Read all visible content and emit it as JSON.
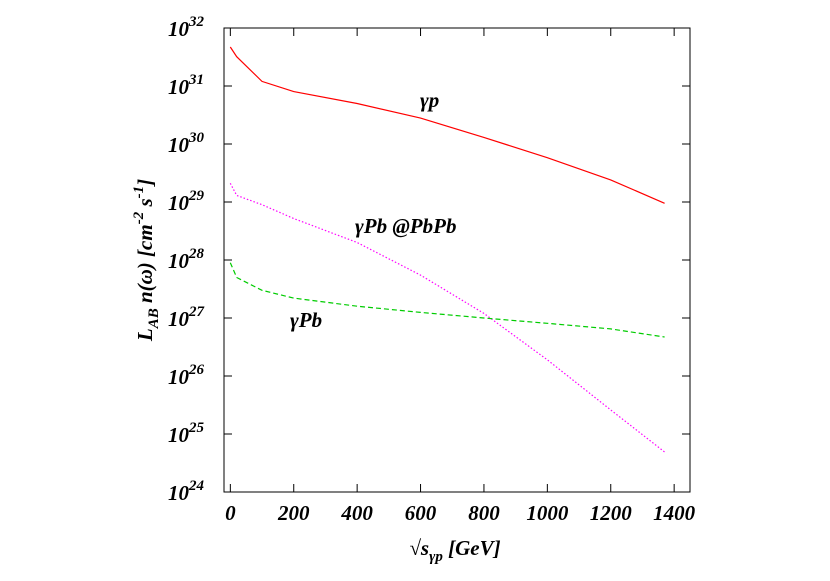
{
  "chart_data": {
    "type": "line",
    "x_label": [
      "√s",
      "γp",
      " [GeV]"
    ],
    "y_label": [
      "L",
      "AB",
      " n(ω) [cm",
      "-2",
      " s",
      "-1",
      "]"
    ],
    "x": [
      0,
      20,
      100,
      200,
      400,
      600,
      800,
      1000,
      1200,
      1370
    ],
    "series": [
      {
        "name": "γp",
        "color": "#ff0000",
        "style": "solid",
        "values": [
          4.7e+31,
          3.2e+31,
          1.2e+31,
          8e+30,
          5e+30,
          2.8e+30,
          1.3e+30,
          5.8e+29,
          2.4e+29,
          9.5e+28
        ]
      },
      {
        "name": "γPb @PbPb",
        "color": "#ff00ff",
        "style": "dotted",
        "values": [
          2.1e+29,
          1.3e+29,
          9e+28,
          5.2e+28,
          2e+28,
          5.5e+27,
          1.2e+27,
          1.9e+26,
          2.6e+25,
          4.9e+24
        ]
      },
      {
        "name": "γPb",
        "color": "#00cc00",
        "style": "dashed",
        "values": [
          9e+27,
          5e+27,
          3e+27,
          2.2e+27,
          1.6e+27,
          1.25e+27,
          1e+27,
          8.1e+26,
          6.5e+26,
          4.7e+26
        ]
      }
    ],
    "xlim": [
      -20,
      1450
    ],
    "xticks": [
      0,
      200,
      400,
      600,
      800,
      1000,
      1200,
      1400
    ],
    "ylim": [
      1e+24,
      1e+32
    ],
    "log_y": true,
    "yticks": [
      {
        "value": 1e+24,
        "label": [
          "10",
          "24"
        ]
      },
      {
        "value": 1e+25,
        "label": [
          "10",
          "25"
        ]
      },
      {
        "value": 1e+26,
        "label": [
          "10",
          "26"
        ]
      },
      {
        "value": 1e+27,
        "label": [
          "10",
          "27"
        ]
      },
      {
        "value": 1e+28,
        "label": [
          "10",
          "28"
        ]
      },
      {
        "value": 1e+29,
        "label": [
          "10",
          "29"
        ]
      },
      {
        "value": 1e+30,
        "label": [
          "10",
          "30"
        ]
      },
      {
        "value": 1e+31,
        "label": [
          "10",
          "31"
        ]
      },
      {
        "value": 1e+32,
        "label": [
          "10",
          "32"
        ]
      }
    ],
    "grid": false
  }
}
